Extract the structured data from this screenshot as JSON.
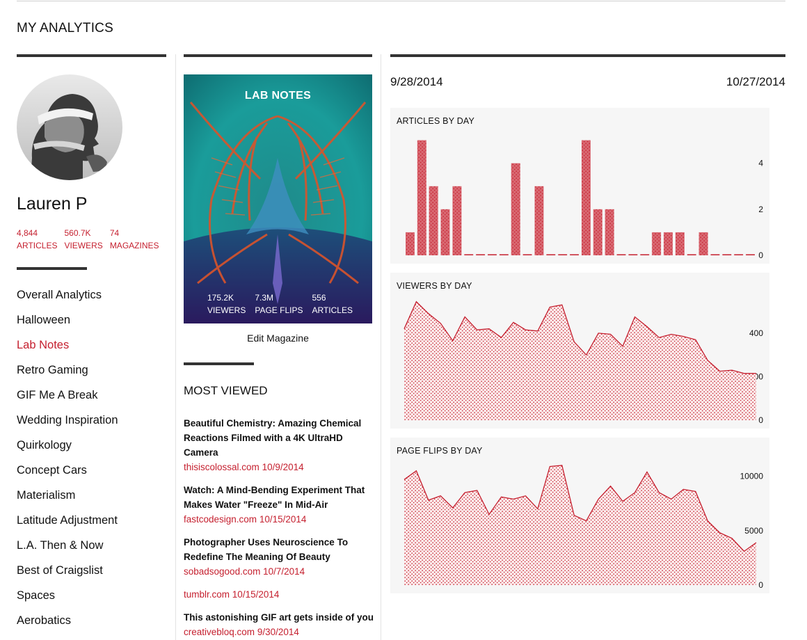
{
  "page": {
    "title": "MY ANALYTICS"
  },
  "profile": {
    "name": "Lauren P",
    "stats": [
      {
        "value": "4,844",
        "label": "ARTICLES"
      },
      {
        "value": "560.7K",
        "label": "VIEWERS"
      },
      {
        "value": "74",
        "label": "MAGAZINES"
      }
    ]
  },
  "magazines": [
    {
      "label": "Overall Analytics",
      "active": false
    },
    {
      "label": "Halloween",
      "active": false
    },
    {
      "label": "Lab Notes",
      "active": true
    },
    {
      "label": "Retro Gaming",
      "active": false
    },
    {
      "label": "GIF Me A Break",
      "active": false
    },
    {
      "label": "Wedding Inspiration",
      "active": false
    },
    {
      "label": "Quirkology",
      "active": false
    },
    {
      "label": "Concept Cars",
      "active": false
    },
    {
      "label": "Materialism",
      "active": false
    },
    {
      "label": "Latitude Adjustment",
      "active": false
    },
    {
      "label": "L.A. Then & Now",
      "active": false
    },
    {
      "label": "Best of Craigslist",
      "active": false
    },
    {
      "label": "Spaces",
      "active": false
    },
    {
      "label": "Aerobatics",
      "active": false
    }
  ],
  "cover": {
    "title": "LAB NOTES",
    "stats": [
      {
        "value": "175.2K",
        "label": "VIEWERS"
      },
      {
        "value": "7.3M",
        "label": "PAGE FLIPS"
      },
      {
        "value": "556",
        "label": "ARTICLES"
      }
    ],
    "edit_label": "Edit Magazine"
  },
  "most_viewed": {
    "title": "MOST VIEWED",
    "items": [
      {
        "headline": "Beautiful Chemistry: Amazing Chemical Reactions Filmed with a 4K UltraHD Camera",
        "source": "thisiscolossal.com",
        "date": "10/9/2014"
      },
      {
        "headline": "Watch: A Mind-Bending Experiment That Makes Water \"Freeze\" In Mid-Air",
        "source": "fastcodesign.com",
        "date": "10/15/2014"
      },
      {
        "headline": "Photographer Uses Neuroscience To Redefine The Meaning Of Beauty",
        "source": "sobadsogood.com",
        "date": "10/7/2014"
      },
      {
        "headline": "",
        "source": "tumblr.com",
        "date": "10/15/2014"
      },
      {
        "headline": "This astonishing GIF art gets inside of you",
        "source": "creativebloq.com",
        "date": "9/30/2014"
      }
    ]
  },
  "date_range": {
    "start": "9/28/2014",
    "end": "10/27/2014"
  },
  "accent_color": "#c5202f",
  "chart_data": [
    {
      "type": "bar",
      "title": "ARTICLES BY DAY",
      "ylim": [
        0,
        5.2
      ],
      "ticks": [
        0,
        2,
        4
      ],
      "values": [
        1,
        5,
        3,
        2,
        3,
        0,
        0,
        0,
        0,
        4,
        0,
        3,
        0,
        0,
        0,
        5,
        2,
        2,
        0,
        0,
        0,
        1,
        1,
        1,
        0,
        1,
        0,
        0,
        0,
        0
      ]
    },
    {
      "type": "area",
      "title": "VIEWERS BY DAY",
      "ylim": [
        0,
        550
      ],
      "ticks": [
        0,
        200,
        400
      ],
      "values": [
        420,
        545,
        490,
        445,
        365,
        475,
        415,
        420,
        380,
        450,
        415,
        410,
        520,
        530,
        360,
        300,
        400,
        395,
        340,
        475,
        430,
        380,
        395,
        385,
        370,
        275,
        225,
        230,
        215,
        215
      ]
    },
    {
      "type": "area",
      "title": "PAGE FLIPS BY DAY",
      "ylim": [
        0,
        11000
      ],
      "ticks": [
        0,
        5000,
        10000
      ],
      "values": [
        9700,
        10500,
        7800,
        8200,
        7100,
        8500,
        8700,
        6500,
        8100,
        7900,
        8200,
        7000,
        10900,
        11000,
        6400,
        5900,
        7900,
        9100,
        7700,
        8500,
        10400,
        8500,
        7900,
        8800,
        8600,
        5900,
        4800,
        4300,
        3100,
        3900
      ]
    }
  ]
}
